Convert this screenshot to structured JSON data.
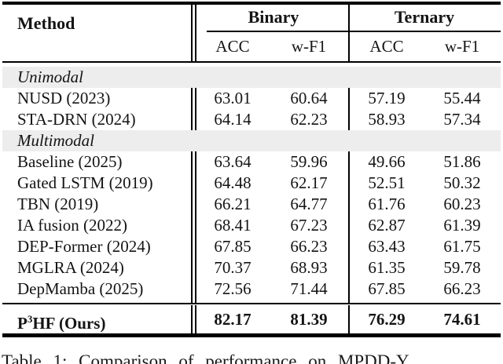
{
  "page": {
    "background": "#ffffff",
    "text_color": "#141414",
    "section_row_bg": "#ededed",
    "rule_color": "#000000"
  },
  "table": {
    "method_header": "Method",
    "groups": [
      {
        "label": "Binary"
      },
      {
        "label": "Ternary"
      }
    ],
    "sub_headers": [
      "ACC",
      "w-F1",
      "ACC",
      "w-F1"
    ],
    "rows": [
      {
        "type": "section",
        "label": "Unimodal"
      },
      {
        "type": "data",
        "method": "NUSD (2023)",
        "values": [
          "63.01",
          "60.64",
          "57.19",
          "55.44"
        ]
      },
      {
        "type": "data",
        "method": "STA-DRN (2024)",
        "values": [
          "64.14",
          "62.23",
          "58.93",
          "57.34"
        ]
      },
      {
        "type": "section",
        "label": "Multimodal"
      },
      {
        "type": "data",
        "method": "Baseline (2025)",
        "values": [
          "63.64",
          "59.96",
          "49.66",
          "51.86"
        ]
      },
      {
        "type": "data",
        "method": "Gated LSTM (2019)",
        "values": [
          "64.48",
          "62.17",
          "52.51",
          "50.32"
        ]
      },
      {
        "type": "data",
        "method": "TBN (2019)",
        "values": [
          "66.21",
          "64.77",
          "61.76",
          "60.23"
        ]
      },
      {
        "type": "data",
        "method": "IA fusion (2022)",
        "values": [
          "68.41",
          "67.23",
          "62.87",
          "61.39"
        ]
      },
      {
        "type": "data",
        "method": "DEP-Former (2024)",
        "values": [
          "67.85",
          "66.23",
          "63.43",
          "61.75"
        ]
      },
      {
        "type": "data",
        "method": "MGLRA (2024)",
        "values": [
          "70.37",
          "68.93",
          "61.35",
          "59.78"
        ]
      },
      {
        "type": "data",
        "method": "DepMamba (2025)",
        "values": [
          "72.56",
          "71.44",
          "67.85",
          "66.23"
        ]
      }
    ],
    "footer_row": {
      "method_base": "P",
      "method_superscript": "3",
      "method_rest": "HF (Ours)",
      "values": [
        "82.17",
        "81.39",
        "76.29",
        "74.61"
      ]
    }
  },
  "caption": {
    "text": "Table 1: Comparison of performance on MPDD-Y"
  }
}
